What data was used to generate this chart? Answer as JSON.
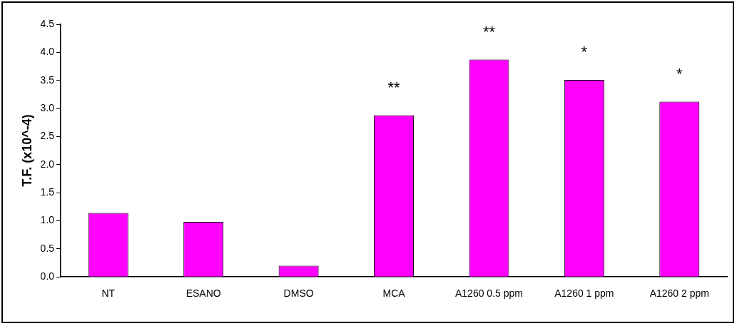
{
  "chart_data": {
    "type": "bar",
    "ylabel": "T.F. (x10^-4)",
    "categories": [
      "NT",
      "ESANO",
      "DMSO",
      "MCA",
      "A1260 0.5 ppm",
      "A1260 1 ppm",
      "A1260 2 ppm"
    ],
    "values": [
      1.14,
      0.98,
      0.2,
      2.88,
      3.87,
      3.51,
      3.12
    ],
    "color": "#ff00ff",
    "ylim": [
      0,
      4.5
    ],
    "yticks": [
      {
        "value": 0,
        "label": "0.0"
      },
      0.5,
      {
        "value": 1,
        "label": "1.0"
      },
      1.5,
      {
        "value": 2,
        "label": "2.0"
      },
      2.5,
      {
        "value": 3,
        "label": "3.0"
      },
      3.5,
      {
        "value": 4,
        "label": "4.0"
      },
      4.5
    ],
    "grid": false,
    "annotations": [
      {
        "text": "**",
        "x": "MCA",
        "y": 2.88
      },
      {
        "text": "**",
        "x": "A1260 0.5 ppm",
        "y": 3.87
      },
      {
        "text": "*",
        "x": "A1260 1 ppm",
        "y": 3.51
      },
      {
        "text": "*",
        "x": "A1260 2 ppm",
        "y": 3.12
      }
    ]
  }
}
